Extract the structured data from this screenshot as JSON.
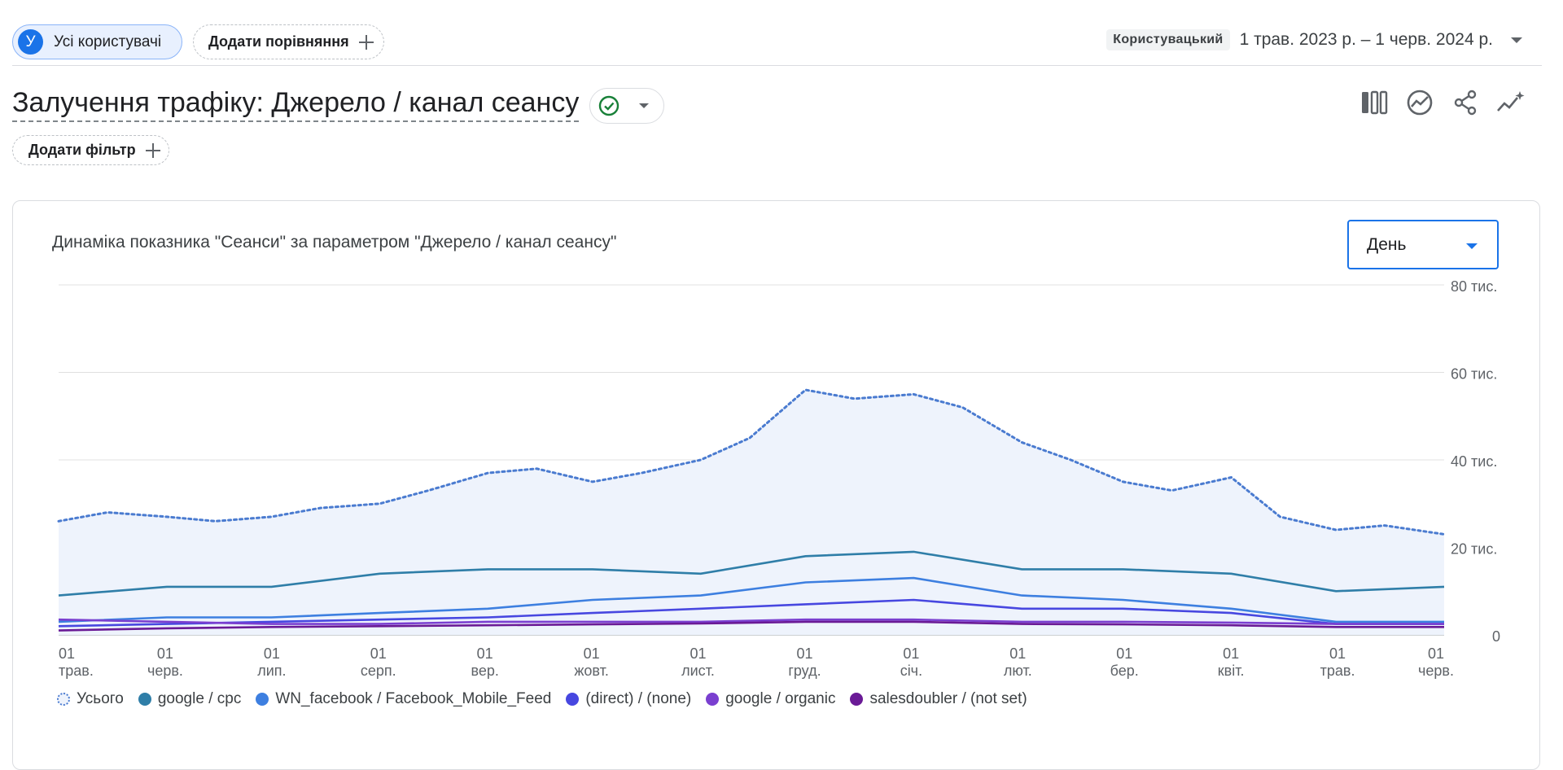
{
  "header": {
    "user_segment": {
      "avatar_letter": "У",
      "label": "Усі користувачі"
    },
    "compare_button": "Додати порівняння",
    "date_preset": "Користувацький",
    "date_range": "1 трав. 2023 р. – 1 черв. 2024 р."
  },
  "report": {
    "title": "Залучення трафіку: Джерело / канал сеансу",
    "add_filter": "Додати фільтр"
  },
  "card": {
    "title": "Динаміка показника \"Сеанси\" за параметром \"Джерело / канал сеансу\"",
    "granularity": "День"
  },
  "icons": [
    "compare-columns-icon",
    "insights-icon",
    "share-icon",
    "trend-sparkle-icon",
    "check-circle-icon",
    "dropdown-caret-icon"
  ],
  "colors": {
    "accent": "#1a73e8",
    "total": "#4a7bd0",
    "google_cpc": "#2f7ea8",
    "wn_facebook": "#3d7fe0",
    "direct": "#4747e0",
    "google_organic": "#7a3fd0",
    "salesdoubler": "#6a1a96",
    "area_fill": "#eef3fc"
  },
  "chart_data": {
    "type": "line",
    "x_range": [
      "2023-05-01",
      "2024-06-01"
    ],
    "x_tick_labels": [
      [
        "01",
        "трав."
      ],
      [
        "01",
        "черв."
      ],
      [
        "01",
        "лип."
      ],
      [
        "01",
        "серп."
      ],
      [
        "01",
        "вер."
      ],
      [
        "01",
        "жовт."
      ],
      [
        "01",
        "лист."
      ],
      [
        "01",
        "груд."
      ],
      [
        "01",
        "січ."
      ],
      [
        "01",
        "лют."
      ],
      [
        "01",
        "бер."
      ],
      [
        "01",
        "квіт."
      ],
      [
        "01",
        "трав."
      ],
      [
        "01",
        "черв."
      ]
    ],
    "y_ticks": [
      "0",
      "20 тис.",
      "40 тис.",
      "60 тис.",
      "80 тис."
    ],
    "ylim": [
      0,
      80000
    ],
    "legend_position": "bottom",
    "series": [
      {
        "name": "Усього",
        "style": "dotted-area",
        "x": [
          "2023-05-01",
          "2023-05-15",
          "2023-06-01",
          "2023-06-15",
          "2023-07-01",
          "2023-07-15",
          "2023-08-01",
          "2023-08-15",
          "2023-09-01",
          "2023-09-15",
          "2023-10-01",
          "2023-10-15",
          "2023-11-01",
          "2023-11-15",
          "2023-12-01",
          "2023-12-15",
          "2024-01-01",
          "2024-01-15",
          "2024-02-01",
          "2024-02-15",
          "2024-03-01",
          "2024-03-15",
          "2024-04-01",
          "2024-04-15",
          "2024-05-01",
          "2024-05-15",
          "2024-06-01"
        ],
        "values": [
          26000,
          28000,
          27000,
          26000,
          27000,
          29000,
          30000,
          33000,
          37000,
          38000,
          35000,
          37000,
          40000,
          45000,
          56000,
          54000,
          55000,
          52000,
          44000,
          40000,
          35000,
          33000,
          36000,
          27000,
          24000,
          25000,
          23000
        ]
      },
      {
        "name": "google / cpc",
        "x": [
          "2023-05-01",
          "2023-06-01",
          "2023-07-01",
          "2023-08-01",
          "2023-09-01",
          "2023-10-01",
          "2023-11-01",
          "2023-12-01",
          "2024-01-01",
          "2024-02-01",
          "2024-03-01",
          "2024-04-01",
          "2024-05-01",
          "2024-06-01"
        ],
        "values": [
          9000,
          11000,
          11000,
          14000,
          15000,
          15000,
          14000,
          18000,
          19000,
          15000,
          15000,
          14000,
          10000,
          11000
        ]
      },
      {
        "name": "WN_facebook / Facebook_Mobile_Feed",
        "x": [
          "2023-05-01",
          "2023-06-01",
          "2023-07-01",
          "2023-08-01",
          "2023-09-01",
          "2023-10-01",
          "2023-11-01",
          "2023-12-01",
          "2024-01-01",
          "2024-02-01",
          "2024-03-01",
          "2024-04-01",
          "2024-05-01",
          "2024-06-01"
        ],
        "values": [
          3000,
          4000,
          4000,
          5000,
          6000,
          8000,
          9000,
          12000,
          13000,
          9000,
          8000,
          6000,
          3000,
          3000
        ]
      },
      {
        "name": "(direct) / (none)",
        "x": [
          "2023-05-01",
          "2023-06-01",
          "2023-07-01",
          "2023-08-01",
          "2023-09-01",
          "2023-10-01",
          "2023-11-01",
          "2023-12-01",
          "2024-01-01",
          "2024-02-01",
          "2024-03-01",
          "2024-04-01",
          "2024-05-01",
          "2024-06-01"
        ],
        "values": [
          2000,
          2500,
          3000,
          3500,
          4000,
          5000,
          6000,
          7000,
          8000,
          6000,
          6000,
          5000,
          2500,
          2500
        ]
      },
      {
        "name": "google / organic",
        "x": [
          "2023-05-01",
          "2023-06-01",
          "2023-07-01",
          "2023-08-01",
          "2023-09-01",
          "2023-10-01",
          "2023-11-01",
          "2023-12-01",
          "2024-01-01",
          "2024-02-01",
          "2024-03-01",
          "2024-04-01",
          "2024-05-01",
          "2024-06-01"
        ],
        "values": [
          3500,
          3000,
          2500,
          2500,
          3000,
          3000,
          3000,
          3500,
          3500,
          3000,
          3000,
          2800,
          2500,
          2500
        ]
      },
      {
        "name": "salesdoubler / (not set)",
        "x": [
          "2023-05-01",
          "2023-06-01",
          "2023-07-01",
          "2023-08-01",
          "2023-09-01",
          "2023-10-01",
          "2023-11-01",
          "2023-12-01",
          "2024-01-01",
          "2024-02-01",
          "2024-03-01",
          "2024-04-01",
          "2024-05-01",
          "2024-06-01"
        ],
        "values": [
          1000,
          1500,
          1800,
          2000,
          2200,
          2400,
          2600,
          3000,
          3000,
          2500,
          2400,
          2200,
          1800,
          1800
        ]
      }
    ]
  }
}
